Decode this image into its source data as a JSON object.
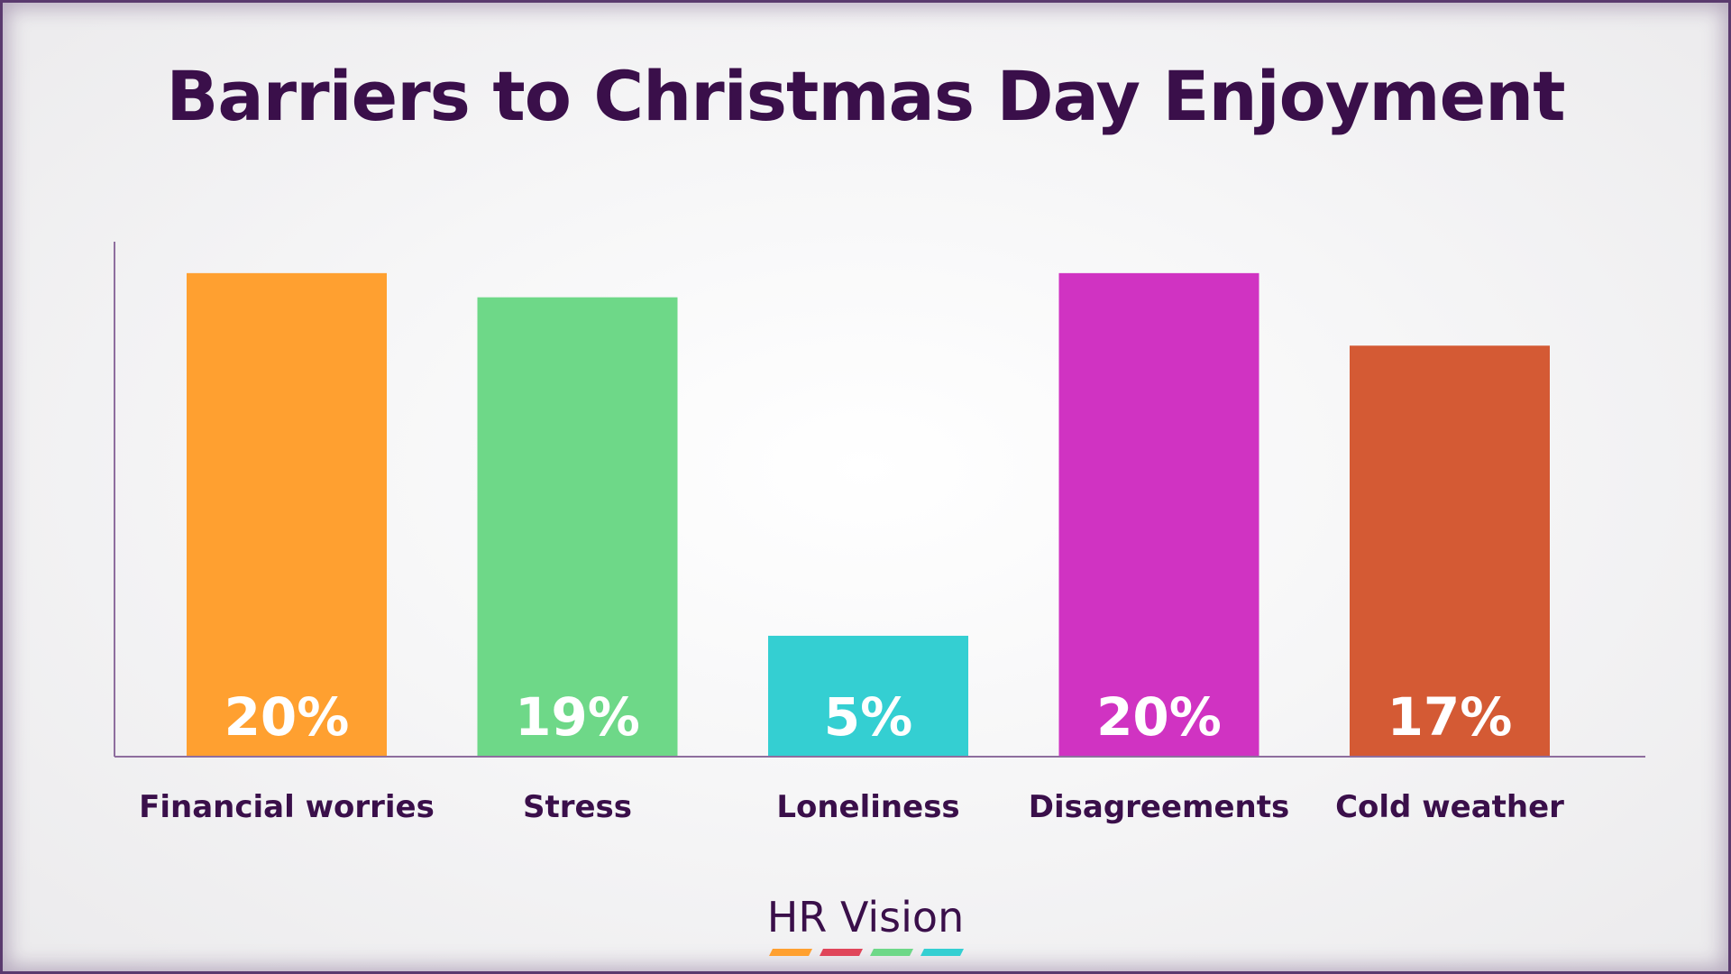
{
  "chart_data": {
    "type": "bar",
    "title": "Barriers to Christmas Day Enjoyment",
    "categories": [
      "Financial worries",
      "Stress",
      "Loneliness",
      "Disagreements",
      "Cold weather"
    ],
    "values": [
      20,
      19,
      5,
      20,
      17
    ],
    "data_labels": [
      "20%",
      "19%",
      "5%",
      "20%",
      "17%"
    ],
    "colors": [
      "#ffa030",
      "#6ed888",
      "#34cfd2",
      "#d033c2",
      "#d45a34"
    ],
    "unit": "%",
    "xlabel": "",
    "ylabel": "",
    "ylim": [
      0,
      21.3
    ],
    "grid": false,
    "legend": "none"
  },
  "brand": {
    "name": "HR Vision",
    "stripe_colors": [
      "#ffa030",
      "#e0455a",
      "#6ed888",
      "#34cfd2"
    ]
  },
  "theme": {
    "title_color": "#3a0f4a",
    "axis_color": "#8e6e9e",
    "data_label_color": "#ffffff"
  }
}
